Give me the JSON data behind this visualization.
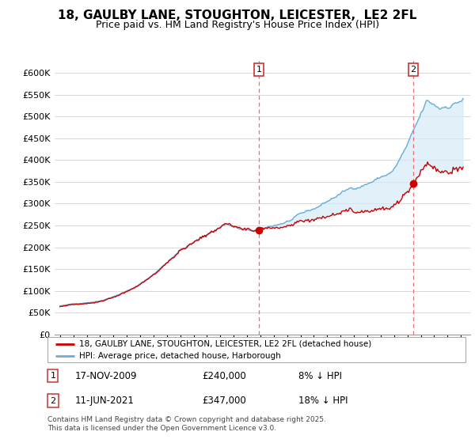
{
  "title_line1": "18, GAULBY LANE, STOUGHTON, LEICESTER,  LE2 2FL",
  "title_line2": "Price paid vs. HM Land Registry's House Price Index (HPI)",
  "legend_label_red": "18, GAULBY LANE, STOUGHTON, LEICESTER, LE2 2FL (detached house)",
  "legend_label_blue": "HPI: Average price, detached house, Harborough",
  "footnote": "Contains HM Land Registry data © Crown copyright and database right 2025.\nThis data is licensed under the Open Government Licence v3.0.",
  "sale1_date": "17-NOV-2009",
  "sale1_price": 240000,
  "sale1_text": "8% ↓ HPI",
  "sale2_date": "11-JUN-2021",
  "sale2_price": 347000,
  "sale2_text": "18% ↓ HPI",
  "sale1_x": 2009.88,
  "sale2_x": 2021.44,
  "ylim": [
    0,
    630000
  ],
  "yticks": [
    0,
    50000,
    100000,
    150000,
    200000,
    250000,
    300000,
    350000,
    400000,
    450000,
    500000,
    550000,
    600000
  ],
  "color_red": "#cc0000",
  "color_blue": "#6aaed6",
  "color_blue_fill": "#d6eaf8",
  "vline_color": "#e87070",
  "grid_color": "#d8d8d8",
  "background_color": "#ffffff"
}
